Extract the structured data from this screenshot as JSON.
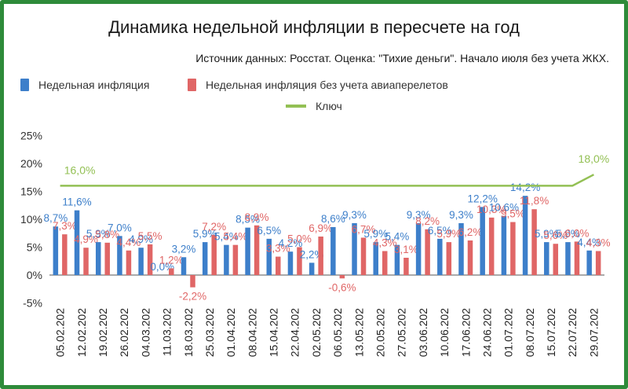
{
  "colors": {
    "border": "#2e8b3a",
    "series_weekly": "#3d7fca",
    "series_ex_air": "#e06666",
    "key_rate": "#93c054"
  },
  "chart_data": {
    "type": "bar",
    "title": "Динамика недельной инфляции в пересчете на год",
    "subtitle": "Источник данных: Росстат. Оценка: \"Тихие деньги\". Начало июля без учета ЖКХ.",
    "categories": [
      "05.02.202",
      "12.02.202",
      "19.02.202",
      "26.02.202",
      "04.03.202",
      "11.03.202",
      "18.03.202",
      "25.03.202",
      "01.04.202",
      "08.04.202",
      "15.04.202",
      "22.04.202",
      "02.05.202",
      "06.05.202",
      "13.05.202",
      "20.05.202",
      "27.05.202",
      "03.06.202",
      "10.06.202",
      "17.06.202",
      "24.06.202",
      "01.07.202",
      "08.07.202",
      "15.07.202",
      "22.07.202",
      "29.07.202"
    ],
    "series": [
      {
        "name": "Недельная инфляция",
        "values": [
          8.7,
          11.6,
          5.9,
          7.0,
          4.9,
          0.0,
          3.2,
          5.9,
          5.4,
          8.5,
          6.5,
          4.2,
          2.2,
          8.6,
          9.3,
          5.9,
          5.4,
          9.3,
          6.5,
          9.3,
          12.2,
          10.6,
          14.2,
          5.9,
          5.9,
          4.4
        ],
        "labels": [
          "8,7%",
          "11,6%",
          "5,9%",
          "7,0%",
          "4,9%",
          "0,0%",
          "3,2%",
          "5,9%",
          "5,4%",
          "8,5%",
          "6,5%",
          "4,2%",
          "2,2%",
          "8,6%",
          "9,3%",
          "5,9%",
          "5,4%",
          "9,3%",
          "6,5%",
          "9,3%",
          "12,2%",
          "10,6%",
          "14,2%",
          "5,9%",
          "5,9%",
          "4,4%"
        ]
      },
      {
        "name": "Недельная инфляция без учета авиаперелетов",
        "values": [
          7.3,
          4.9,
          5.8,
          4.4,
          5.5,
          1.2,
          -2.2,
          7.2,
          5.4,
          8.9,
          3.3,
          5.0,
          6.9,
          -0.6,
          6.7,
          4.3,
          3.1,
          8.2,
          5.9,
          6.2,
          10.3,
          9.5,
          11.8,
          5.6,
          6.0,
          4.3
        ],
        "labels": [
          "7,3%",
          "4,9%",
          "5,8%",
          "4,4%",
          "5,5%",
          "1,2%",
          "-2,2%",
          "7,2%",
          "5,4%",
          "8,9%",
          "3,3%",
          "5,0%",
          "6,9%",
          "-0,6%",
          "6,7%",
          "4,3%",
          "3,1%",
          "8,2%",
          "5,9%",
          "6,2%",
          "10,3%",
          "9,5%",
          "11,8%",
          "5,6%",
          "6,0%",
          "4,3%"
        ]
      },
      {
        "name": "Ключ",
        "values": [
          16,
          16,
          16,
          16,
          16,
          16,
          16,
          16,
          16,
          16,
          16,
          16,
          16,
          16,
          16,
          16,
          16,
          16,
          16,
          16,
          16,
          16,
          16,
          16,
          16,
          18
        ],
        "labels": [
          "16,0%",
          "",
          "",
          "",
          "",
          "",
          "",
          "",
          "",
          "",
          "",
          "",
          "",
          "",
          "",
          "",
          "",
          "",
          "",
          "",
          "",
          "",
          "",
          "",
          "",
          "18,0%"
        ]
      }
    ],
    "yticks": [
      -5,
      0,
      5,
      10,
      15,
      20,
      25
    ],
    "ytick_labels": [
      "-5%",
      "0%",
      "5%",
      "10%",
      "15%",
      "20%",
      "25%"
    ],
    "ylim": [
      -5,
      25
    ],
    "grid": false,
    "legend_position": "top"
  }
}
